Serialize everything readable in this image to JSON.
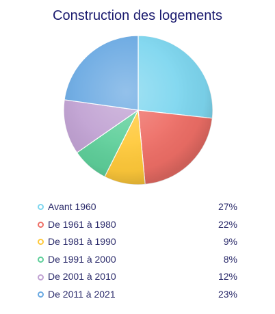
{
  "chart_data": {
    "type": "pie",
    "title": "Construction des logements",
    "categories": [
      "Avant 1960",
      "De 1961 à 1980",
      "De 1981 à 1990",
      "De 1991 à 2000",
      "De 2001 à 2010",
      "De 2011 à 2021"
    ],
    "values": [
      27,
      22,
      9,
      8,
      12,
      23
    ],
    "value_labels": [
      "27%",
      "22%",
      "9%",
      "8%",
      "12%",
      "23%"
    ],
    "colors": [
      "#7dd6ef",
      "#ee6e66",
      "#ffc93a",
      "#5ecf9a",
      "#c0a1d2",
      "#6aa9e2"
    ],
    "legend_position": "bottom"
  }
}
